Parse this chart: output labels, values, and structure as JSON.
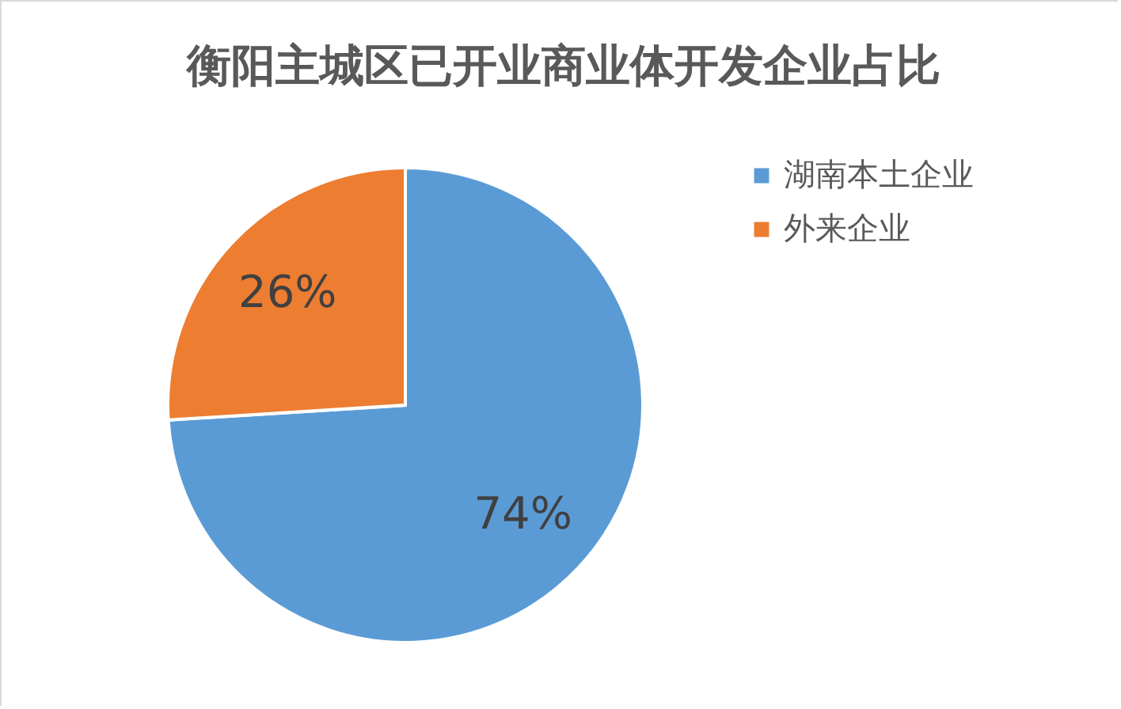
{
  "chart_data": {
    "type": "pie",
    "title": "衡阳主城区已开业商业体开发企业占比",
    "categories": [
      "湖南本土企业",
      "外来企业"
    ],
    "values": [
      74,
      26
    ],
    "colors": [
      "#5b9bd5",
      "#ed7d31"
    ],
    "value_labels": [
      "74%",
      "26%"
    ],
    "legend": "right"
  }
}
